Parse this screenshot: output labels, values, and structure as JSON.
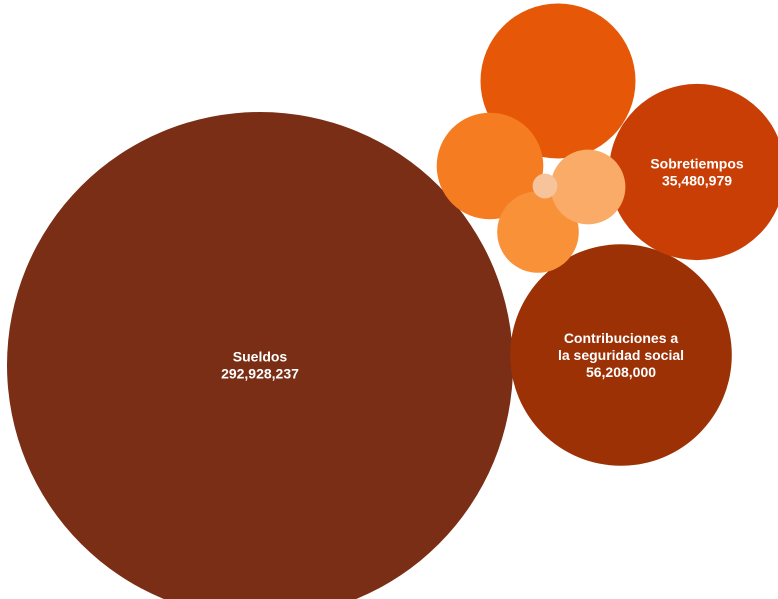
{
  "chart_data": {
    "type": "bubble",
    "title": "",
    "items": [
      {
        "label": [
          "Sueldos"
        ],
        "value_text": "292,928,237",
        "value": 292928237,
        "color": "#7a2e15"
      },
      {
        "label": [
          "Contribuciones a",
          "la seguridad social"
        ],
        "value_text": "56,208,000",
        "value": 56208000,
        "color": "#9c3106"
      },
      {
        "label": [
          "Sobretiempos"
        ],
        "value_text": "35,480,979",
        "value": 35480979,
        "color": "#c83e05"
      },
      {
        "label": [],
        "value_text": "",
        "value": 27500000,
        "color": "#e65708"
      },
      {
        "label": [],
        "value_text": "",
        "value": 13000000,
        "color": "#f57c20"
      },
      {
        "label": [],
        "value_text": "",
        "value": 7600000,
        "color": "#f99138"
      },
      {
        "label": [],
        "value_text": "",
        "value": 6400000,
        "color": "#fbab68"
      },
      {
        "label": [],
        "value_text": "",
        "value": 700000,
        "color": "#f6c39b"
      }
    ]
  }
}
